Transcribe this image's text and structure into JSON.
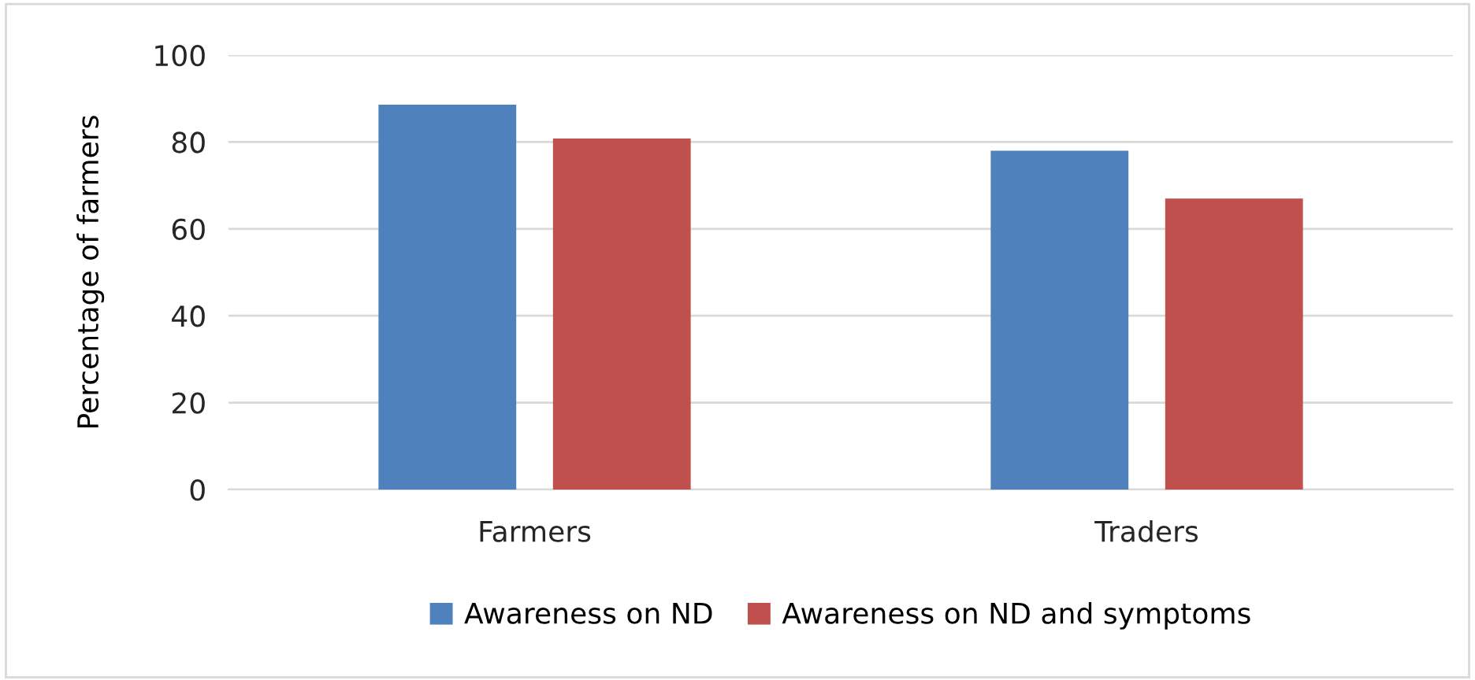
{
  "chart_data": {
    "type": "bar",
    "ylabel": "Percentage of farmers",
    "categories": [
      "Farmers",
      "Traders"
    ],
    "series": [
      {
        "name": "Awareness on ND",
        "color": "#4f81bd",
        "values": [
          88.6,
          78
        ]
      },
      {
        "name": "Awareness on ND and symptoms",
        "color": "#c0504d",
        "values": [
          80.8,
          67
        ]
      }
    ],
    "ylim": [
      0,
      100
    ],
    "yticks": [
      0,
      20,
      40,
      60,
      80,
      100
    ],
    "grid": "y",
    "legend": "bottom"
  }
}
